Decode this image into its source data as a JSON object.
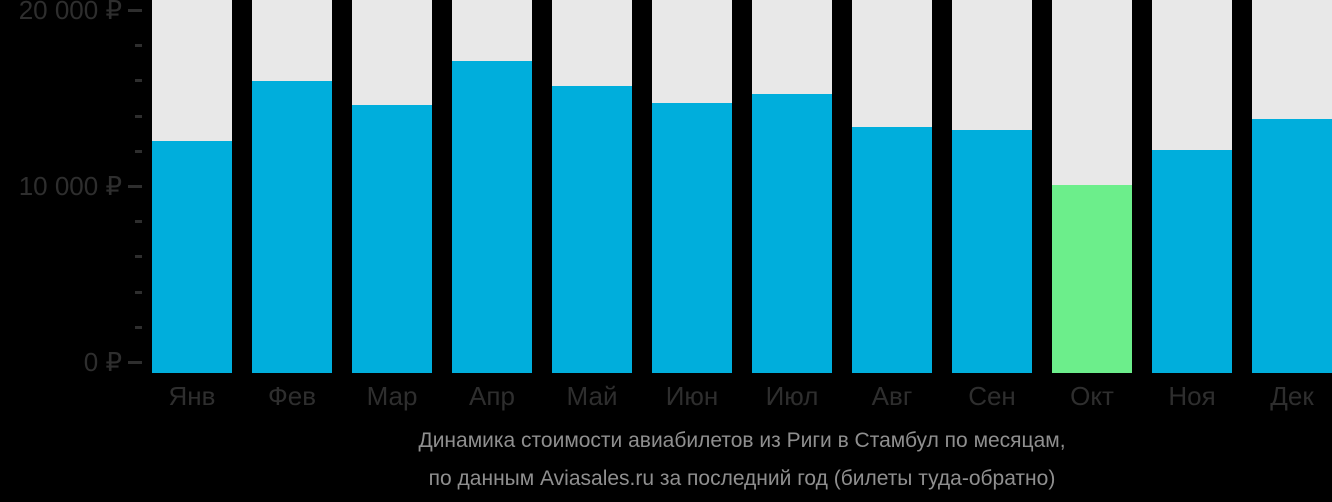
{
  "chart_data": {
    "type": "bar",
    "categories": [
      "Янв",
      "Фев",
      "Мар",
      "Апр",
      "Май",
      "Июн",
      "Июл",
      "Авг",
      "Сен",
      "Окт",
      "Ноя",
      "Дек"
    ],
    "values": [
      12700,
      16000,
      14700,
      17100,
      15700,
      14800,
      15300,
      13500,
      13300,
      10300,
      12200,
      13900
    ],
    "highlight_index": 9,
    "highlight_category": "Окт",
    "title_line1": "Динамика стоимости авиабилетов из Риги в Стамбул по месяцам,",
    "title_line2": "по данным Aviasales.ru за последний год (билеты туда-обратно)",
    "ylim": [
      0,
      20000
    ],
    "ytick_major": [
      {
        "value": 20000,
        "label": "20 000 ₽"
      },
      {
        "value": 10000,
        "label": "10 000 ₽"
      },
      {
        "value": 0,
        "label": "0 ₽"
      }
    ],
    "ytick_minor_step": 2000,
    "xlabel": "",
    "ylabel": "",
    "grid": false,
    "legend": null,
    "colors": {
      "bar": "#00AEDC",
      "bar_highlight": "#6CEE8B",
      "column_background": "#E8E8E8",
      "axis_text": "#2E2E2E",
      "tick_mark": "#2E2E2E",
      "title_text": "#8F8F8F",
      "background": "#000000"
    }
  }
}
